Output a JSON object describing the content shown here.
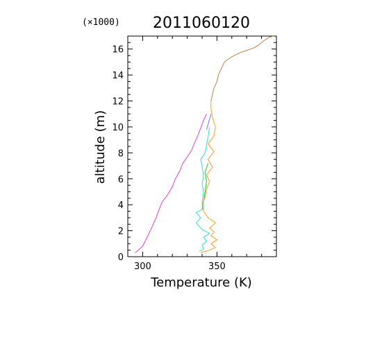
{
  "chart_data": {
    "type": "line",
    "title": "2011060120",
    "multiplier_label": "(×1000)",
    "xlabel": "Temperature (K)",
    "ylabel": "altitude (m)",
    "xlim": [
      290,
      390
    ],
    "ylim": [
      0,
      17000
    ],
    "x_ticks": [
      300,
      350
    ],
    "y_ticks": [
      0,
      2,
      4,
      6,
      8,
      10,
      12,
      14,
      16
    ],
    "grid": false,
    "series": [
      {
        "color": "#e040d0",
        "points": [
          [
            295,
            300
          ],
          [
            300,
            800
          ],
          [
            303,
            1500
          ],
          [
            306,
            2200
          ],
          [
            309,
            3000
          ],
          [
            311,
            3600
          ],
          [
            313,
            4200
          ],
          [
            317,
            4800
          ],
          [
            320,
            5400
          ],
          [
            322,
            6000
          ],
          [
            325,
            6600
          ],
          [
            327,
            7200
          ],
          [
            330,
            7700
          ],
          [
            333,
            8200
          ],
          [
            335,
            8800
          ],
          [
            337,
            9300
          ],
          [
            339,
            9900
          ],
          [
            341,
            10500
          ],
          [
            343,
            11000
          ]
        ]
      },
      {
        "color": "#30e0d0",
        "points": [
          [
            338,
            400
          ],
          [
            341,
            600
          ],
          [
            340,
            900
          ],
          [
            343,
            1200
          ],
          [
            341,
            1500
          ],
          [
            345,
            1800
          ],
          [
            340,
            2100
          ],
          [
            336,
            2600
          ],
          [
            339,
            3000
          ],
          [
            336,
            3400
          ],
          [
            341,
            3700
          ],
          [
            340,
            4200
          ],
          [
            341,
            5000
          ],
          [
            340,
            5600
          ],
          [
            341,
            6200
          ],
          [
            340,
            7000
          ],
          [
            339,
            7500
          ],
          [
            342,
            8000
          ],
          [
            343,
            8600
          ],
          [
            344,
            9200
          ],
          [
            345,
            10000
          ]
        ]
      },
      {
        "color": "#30c030",
        "points": [
          [
            340,
            3700
          ],
          [
            341,
            4300
          ],
          [
            342,
            5000
          ],
          [
            343,
            5800
          ],
          [
            342,
            6500
          ],
          [
            344,
            7200
          ]
        ]
      },
      {
        "color": "#ff9a20",
        "points": [
          [
            339,
            300
          ],
          [
            345,
            500
          ],
          [
            349,
            700
          ],
          [
            346,
            1000
          ],
          [
            350,
            1300
          ],
          [
            346,
            1600
          ],
          [
            348,
            1900
          ],
          [
            345,
            2200
          ],
          [
            349,
            2600
          ],
          [
            344,
            3000
          ],
          [
            341,
            3500
          ],
          [
            340,
            4000
          ],
          [
            342,
            4600
          ],
          [
            343,
            5200
          ],
          [
            345,
            5800
          ],
          [
            343,
            6300
          ],
          [
            347,
            6900
          ],
          [
            344,
            7500
          ],
          [
            348,
            8100
          ],
          [
            344,
            8700
          ],
          [
            348,
            9300
          ],
          [
            349,
            10000
          ],
          [
            347,
            10700
          ],
          [
            346,
            11400
          ],
          [
            346,
            12000
          ]
        ]
      },
      {
        "color": "#7070ff",
        "points": [
          [
            343,
            9800
          ],
          [
            344,
            10200
          ],
          [
            345,
            10600
          ],
          [
            346,
            11000
          ]
        ]
      },
      {
        "color": "#b8804a",
        "points": [
          [
            346,
            12000
          ],
          [
            347,
            12500
          ],
          [
            348,
            13000
          ],
          [
            350,
            13500
          ],
          [
            351,
            14000
          ],
          [
            353,
            14500
          ],
          [
            355,
            15000
          ],
          [
            360,
            15400
          ],
          [
            365,
            15700
          ],
          [
            370,
            15900
          ],
          [
            375,
            16100
          ],
          [
            378,
            16300
          ],
          [
            381,
            16600
          ],
          [
            385,
            16900
          ],
          [
            388,
            17000
          ]
        ]
      }
    ]
  }
}
